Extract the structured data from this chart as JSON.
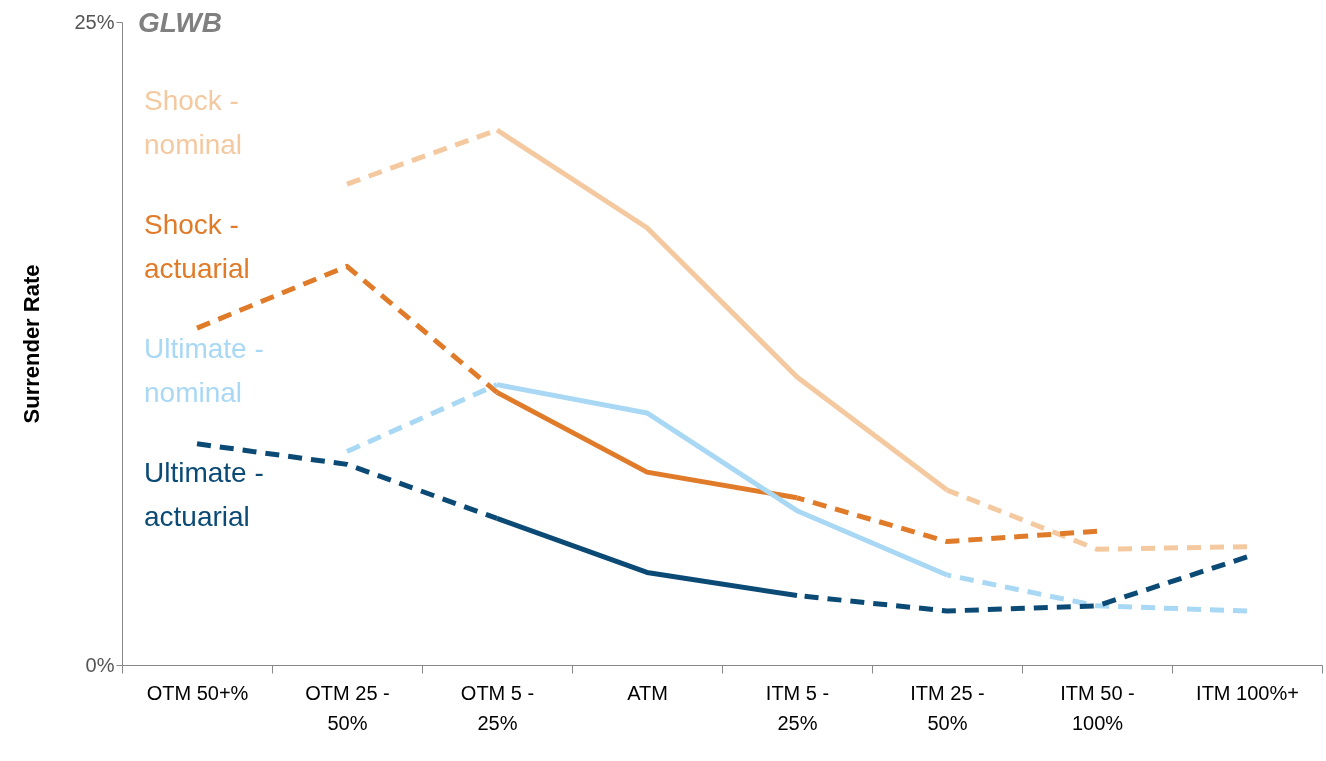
{
  "chart_data": {
    "type": "line",
    "title": "GLWB",
    "ylabel": "Surrender Rate",
    "categories": [
      "OTM 50+%",
      "OTM 25 - 50%",
      "OTM 5 - 25%",
      "ATM",
      "ITM 5 - 25%",
      "ITM 25 - 50%",
      "ITM 50 - 100%",
      "ITM 100%+"
    ],
    "ylim": [
      0,
      25
    ],
    "yticks": [
      {
        "value": 0,
        "label": "0%"
      },
      {
        "value": 25,
        "label": "25%"
      }
    ],
    "grid": false,
    "legend": "left",
    "marker": "none",
    "series": [
      {
        "color": "#f4c9a0",
        "line_style": "dashed",
        "values": [
          null,
          18.7,
          20.8,
          null,
          null,
          null,
          null,
          null
        ]
      },
      {
        "name": "Shock - nominal",
        "color": "#f4c9a0",
        "line_style": "solid",
        "values": [
          null,
          null,
          20.8,
          17.0,
          11.2,
          6.8,
          null,
          null
        ]
      },
      {
        "color": "#f4c9a0",
        "line_style": "dashed",
        "values": [
          null,
          null,
          null,
          null,
          null,
          6.8,
          4.5,
          4.6
        ]
      },
      {
        "color": "#e07b2a",
        "line_style": "dashed",
        "values": [
          13.1,
          15.5,
          10.6,
          null,
          null,
          null,
          null,
          null
        ]
      },
      {
        "name": "Shock - actuarial",
        "color": "#e07b2a",
        "line_style": "solid",
        "values": [
          null,
          null,
          10.6,
          7.5,
          6.5,
          null,
          null,
          null
        ]
      },
      {
        "color": "#e07b2a",
        "line_style": "dashed",
        "values": [
          null,
          null,
          null,
          null,
          6.5,
          4.8,
          5.2,
          null
        ]
      },
      {
        "color": "#a9d8f5",
        "line_style": "dashed",
        "values": [
          null,
          8.3,
          10.9,
          null,
          null,
          null,
          null,
          null
        ]
      },
      {
        "name": "Ultimate - nominal",
        "color": "#a9d8f5",
        "line_style": "solid",
        "values": [
          null,
          null,
          10.9,
          9.8,
          6.0,
          3.5,
          null,
          null
        ]
      },
      {
        "color": "#a9d8f5",
        "line_style": "dashed",
        "values": [
          null,
          null,
          null,
          null,
          null,
          3.5,
          2.3,
          2.1
        ]
      },
      {
        "color": "#0b4a75",
        "line_style": "dashed",
        "values": [
          8.6,
          7.8,
          5.7,
          null,
          null,
          null,
          null,
          null
        ]
      },
      {
        "name": "Ultimate - actuarial",
        "color": "#0b4a75",
        "line_style": "solid",
        "values": [
          null,
          null,
          5.7,
          3.6,
          2.7,
          null,
          null,
          null
        ]
      },
      {
        "color": "#0b4a75",
        "line_style": "dashed",
        "values": [
          null,
          null,
          null,
          null,
          2.7,
          2.1,
          2.3,
          4.2
        ]
      }
    ]
  }
}
